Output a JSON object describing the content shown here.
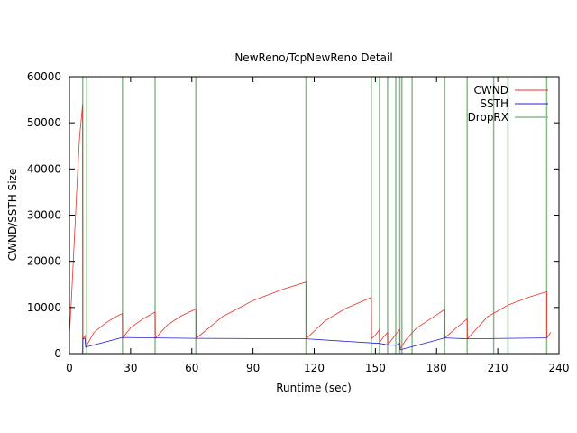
{
  "chart_data": {
    "type": "line",
    "title": "NewReno/TcpNewReno Detail",
    "xlabel": "Runtime (sec)",
    "ylabel": "CWND/SSTH Size",
    "xlim": [
      0,
      240
    ],
    "ylim": [
      0,
      60000
    ],
    "xticks": [
      0,
      30,
      60,
      90,
      120,
      150,
      180,
      210,
      240
    ],
    "yticks": [
      0,
      10000,
      20000,
      30000,
      40000,
      50000,
      60000
    ],
    "legend_position": "top-right",
    "series": [
      {
        "name": "CWND",
        "color": "#e8322a",
        "points": [
          [
            0,
            4000
          ],
          [
            1,
            12000
          ],
          [
            2,
            21000
          ],
          [
            3,
            30000
          ],
          [
            4,
            39000
          ],
          [
            5,
            47000
          ],
          [
            6.5,
            54000
          ],
          [
            6.6,
            3000
          ],
          [
            7.2,
            3600
          ],
          [
            7.6,
            3900
          ],
          [
            7.8,
            2400
          ],
          [
            8.0,
            1400
          ],
          [
            12,
            4600
          ],
          [
            18,
            6700
          ],
          [
            22,
            7800
          ],
          [
            26,
            8700
          ],
          [
            26.1,
            3400
          ],
          [
            30,
            5600
          ],
          [
            36,
            7500
          ],
          [
            42,
            9000
          ],
          [
            42.1,
            3300
          ],
          [
            48,
            6200
          ],
          [
            55,
            8200
          ],
          [
            62,
            9700
          ],
          [
            62.1,
            3300
          ],
          [
            75,
            8000
          ],
          [
            90,
            11500
          ],
          [
            105,
            14000
          ],
          [
            116,
            15500
          ],
          [
            116.1,
            3200
          ],
          [
            125,
            7000
          ],
          [
            135,
            9700
          ],
          [
            148,
            12200
          ],
          [
            148.1,
            3200
          ],
          [
            150,
            4000
          ],
          [
            152,
            5200
          ],
          [
            152.1,
            2400
          ],
          [
            154,
            3600
          ],
          [
            156,
            4600
          ],
          [
            156.1,
            1900
          ],
          [
            158,
            3000
          ],
          [
            160,
            4200
          ],
          [
            162,
            5200
          ],
          [
            162.1,
            1000
          ],
          [
            165,
            3000
          ],
          [
            170,
            5500
          ],
          [
            178,
            7800
          ],
          [
            184,
            9600
          ],
          [
            184.1,
            3400
          ],
          [
            190,
            5700
          ],
          [
            195,
            7500
          ],
          [
            195.1,
            3200
          ],
          [
            205,
            8000
          ],
          [
            215,
            10500
          ],
          [
            225,
            12200
          ],
          [
            234,
            13400
          ],
          [
            234.1,
            3400
          ],
          [
            236,
            4600
          ]
        ]
      },
      {
        "name": "SSTH",
        "color": "#2121d6",
        "points": [
          [
            6.5,
            0
          ],
          [
            6.6,
            3200
          ],
          [
            7.6,
            3300
          ],
          [
            8.0,
            1400
          ],
          [
            26,
            3500
          ],
          [
            42,
            3400
          ],
          [
            62,
            3300
          ],
          [
            116,
            3200
          ],
          [
            148,
            2300
          ],
          [
            152,
            2200
          ],
          [
            156,
            1900
          ],
          [
            160,
            1800
          ],
          [
            162,
            2200
          ],
          [
            162.1,
            800
          ],
          [
            184,
            3400
          ],
          [
            195,
            3200
          ],
          [
            234,
            3400
          ]
        ]
      },
      {
        "name": "DropRX",
        "color": "#88bb88",
        "type": "vlines",
        "x": [
          6.5,
          8.5,
          26,
          42,
          62,
          116,
          148,
          152,
          156,
          160,
          162,
          163,
          168,
          184,
          195,
          208,
          215,
          234
        ]
      }
    ]
  }
}
